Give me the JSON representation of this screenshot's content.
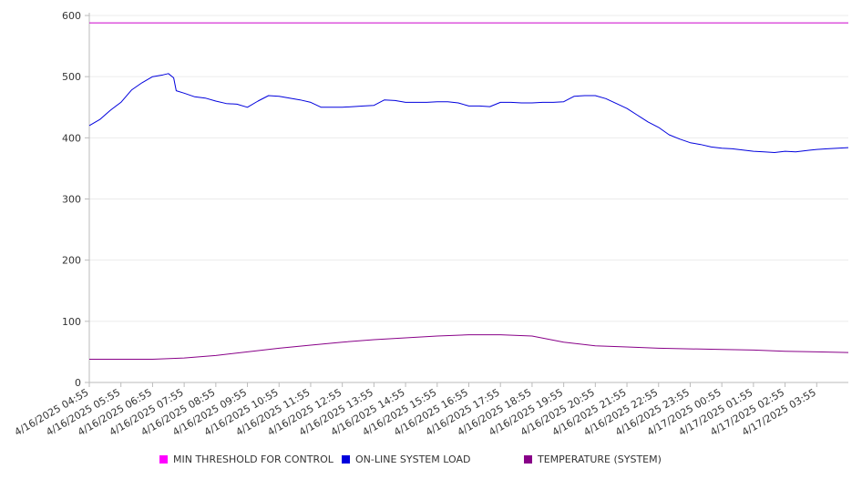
{
  "chart_data": {
    "type": "line",
    "x": [
      "4/16/2025 04:55",
      "4/16/2025 05:55",
      "4/16/2025 06:55",
      "4/16/2025 07:55",
      "4/16/2025 08:55",
      "4/16/2025 09:55",
      "4/16/2025 10:55",
      "4/16/2025 11:55",
      "4/16/2025 12:55",
      "4/16/2025 13:55",
      "4/16/2025 14:55",
      "4/16/2025 15:55",
      "4/16/2025 16:55",
      "4/16/2025 17:55",
      "4/16/2025 18:55",
      "4/16/2025 19:55",
      "4/16/2025 20:55",
      "4/16/2025 21:55",
      "4/16/2025 22:55",
      "4/16/2025 23:55",
      "4/17/2025 00:55",
      "4/17/2025 01:55",
      "4/17/2025 02:55",
      "4/17/2025 03:55"
    ],
    "x_range": [
      "4/16/2025 04:55",
      "4/17/2025 04:55"
    ],
    "y_ticks": [
      0,
      100,
      200,
      300,
      400,
      500,
      600
    ],
    "ylim": [
      0,
      600
    ],
    "grid": true,
    "legend_position": "bottom",
    "series": [
      {
        "name": "MIN THRESHOLD FOR CONTROL",
        "color": "#cc00cc",
        "points": [
          [
            "4/16/2025 04:55",
            588
          ],
          [
            "4/17/2025 04:55",
            588
          ]
        ]
      },
      {
        "name": "ON-LINE SYSTEM LOAD",
        "color": "#0000dd",
        "points": [
          [
            "4/16/2025 04:55",
            420
          ],
          [
            "4/16/2025 05:15",
            430
          ],
          [
            "4/16/2025 05:35",
            445
          ],
          [
            "4/16/2025 05:55",
            458
          ],
          [
            "4/16/2025 06:15",
            478
          ],
          [
            "4/16/2025 06:35",
            490
          ],
          [
            "4/16/2025 06:55",
            500
          ],
          [
            "4/16/2025 07:15",
            503
          ],
          [
            "4/16/2025 07:25",
            505
          ],
          [
            "4/16/2025 07:35",
            498
          ],
          [
            "4/16/2025 07:40",
            477
          ],
          [
            "4/16/2025 07:55",
            473
          ],
          [
            "4/16/2025 08:15",
            467
          ],
          [
            "4/16/2025 08:35",
            465
          ],
          [
            "4/16/2025 08:55",
            460
          ],
          [
            "4/16/2025 09:15",
            456
          ],
          [
            "4/16/2025 09:35",
            455
          ],
          [
            "4/16/2025 09:55",
            450
          ],
          [
            "4/16/2025 10:15",
            460
          ],
          [
            "4/16/2025 10:35",
            469
          ],
          [
            "4/16/2025 10:55",
            468
          ],
          [
            "4/16/2025 11:15",
            465
          ],
          [
            "4/16/2025 11:35",
            462
          ],
          [
            "4/16/2025 11:55",
            458
          ],
          [
            "4/16/2025 12:15",
            450
          ],
          [
            "4/16/2025 12:35",
            450
          ],
          [
            "4/16/2025 12:55",
            450
          ],
          [
            "4/16/2025 13:15",
            451
          ],
          [
            "4/16/2025 13:35",
            452
          ],
          [
            "4/16/2025 13:55",
            453
          ],
          [
            "4/16/2025 14:15",
            462
          ],
          [
            "4/16/2025 14:35",
            461
          ],
          [
            "4/16/2025 14:55",
            458
          ],
          [
            "4/16/2025 15:15",
            458
          ],
          [
            "4/16/2025 15:35",
            458
          ],
          [
            "4/16/2025 15:55",
            459
          ],
          [
            "4/16/2025 16:15",
            459
          ],
          [
            "4/16/2025 16:35",
            457
          ],
          [
            "4/16/2025 16:55",
            452
          ],
          [
            "4/16/2025 17:15",
            452
          ],
          [
            "4/16/2025 17:35",
            451
          ],
          [
            "4/16/2025 17:55",
            458
          ],
          [
            "4/16/2025 18:15",
            458
          ],
          [
            "4/16/2025 18:35",
            457
          ],
          [
            "4/16/2025 18:55",
            457
          ],
          [
            "4/16/2025 19:15",
            458
          ],
          [
            "4/16/2025 19:35",
            458
          ],
          [
            "4/16/2025 19:55",
            459
          ],
          [
            "4/16/2025 20:15",
            468
          ],
          [
            "4/16/2025 20:35",
            469
          ],
          [
            "4/16/2025 20:55",
            469
          ],
          [
            "4/16/2025 21:15",
            464
          ],
          [
            "4/16/2025 21:35",
            456
          ],
          [
            "4/16/2025 21:55",
            448
          ],
          [
            "4/16/2025 22:15",
            437
          ],
          [
            "4/16/2025 22:35",
            426
          ],
          [
            "4/16/2025 22:55",
            417
          ],
          [
            "4/16/2025 23:15",
            405
          ],
          [
            "4/16/2025 23:35",
            398
          ],
          [
            "4/16/2025 23:55",
            392
          ],
          [
            "4/17/2025 00:15",
            389
          ],
          [
            "4/17/2025 00:35",
            385
          ],
          [
            "4/17/2025 00:55",
            383
          ],
          [
            "4/17/2025 01:15",
            382
          ],
          [
            "4/17/2025 01:35",
            380
          ],
          [
            "4/17/2025 01:55",
            378
          ],
          [
            "4/17/2025 02:15",
            377
          ],
          [
            "4/17/2025 02:35",
            376
          ],
          [
            "4/17/2025 02:55",
            378
          ],
          [
            "4/17/2025 03:15",
            377
          ],
          [
            "4/17/2025 03:35",
            379
          ],
          [
            "4/17/2025 03:55",
            381
          ],
          [
            "4/17/2025 04:15",
            382
          ],
          [
            "4/17/2025 04:35",
            383
          ],
          [
            "4/17/2025 04:55",
            384
          ]
        ]
      },
      {
        "name": "TEMPERATURE (SYSTEM)",
        "color": "#880088",
        "points": [
          [
            "4/16/2025 04:55",
            38
          ],
          [
            "4/16/2025 06:55",
            38
          ],
          [
            "4/16/2025 07:55",
            40
          ],
          [
            "4/16/2025 08:55",
            44
          ],
          [
            "4/16/2025 09:55",
            50
          ],
          [
            "4/16/2025 10:55",
            56
          ],
          [
            "4/16/2025 11:55",
            61
          ],
          [
            "4/16/2025 12:55",
            66
          ],
          [
            "4/16/2025 13:55",
            70
          ],
          [
            "4/16/2025 14:55",
            73
          ],
          [
            "4/16/2025 15:55",
            76
          ],
          [
            "4/16/2025 16:55",
            78
          ],
          [
            "4/16/2025 17:55",
            78
          ],
          [
            "4/16/2025 18:55",
            76
          ],
          [
            "4/16/2025 19:55",
            66
          ],
          [
            "4/16/2025 20:55",
            60
          ],
          [
            "4/16/2025 21:55",
            58
          ],
          [
            "4/16/2025 22:55",
            56
          ],
          [
            "4/16/2025 23:55",
            55
          ],
          [
            "4/17/2025 00:55",
            54
          ],
          [
            "4/17/2025 01:55",
            53
          ],
          [
            "4/17/2025 02:55",
            51
          ],
          [
            "4/17/2025 03:55",
            50
          ],
          [
            "4/17/2025 04:55",
            49
          ]
        ]
      }
    ]
  }
}
